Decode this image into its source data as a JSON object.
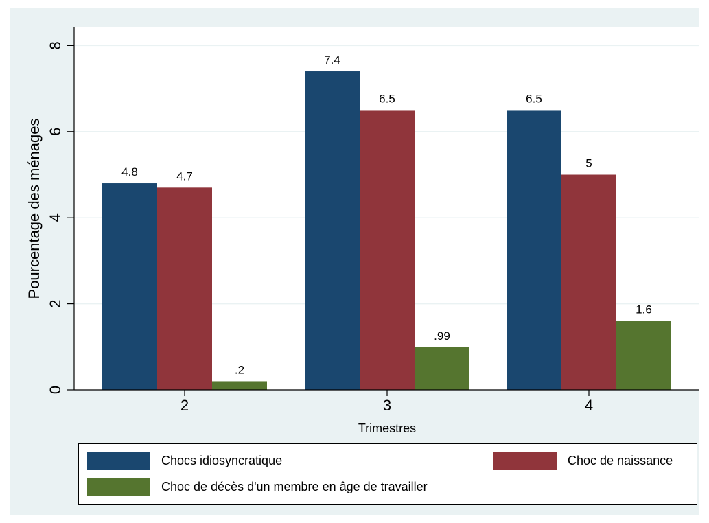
{
  "chart_data": {
    "type": "bar",
    "xlabel": "Trimestres",
    "ylabel": "Pourcentage des ménages",
    "categories": [
      "2",
      "3",
      "4"
    ],
    "ylim": [
      0,
      8.5
    ],
    "yticks": [
      "0",
      "2",
      "4",
      "6",
      "8"
    ],
    "grid": true,
    "legend_position": "bottom",
    "series": [
      {
        "name": "Chocs idiosyncratique",
        "color": "#1a476f",
        "values": [
          4.8,
          7.4,
          6.5
        ],
        "labels": [
          "4.8",
          "7.4",
          "6.5"
        ]
      },
      {
        "name": "Choc de naissance",
        "color": "#90353b",
        "values": [
          4.7,
          6.5,
          5.0
        ],
        "labels": [
          "4.7",
          "6.5",
          "5"
        ]
      },
      {
        "name": "Choc de décès d'un membre en âge de travailler",
        "color": "#55752f",
        "values": [
          0.2,
          0.99,
          1.6
        ],
        "labels": [
          ".2",
          ".99",
          "1.6"
        ]
      }
    ]
  }
}
